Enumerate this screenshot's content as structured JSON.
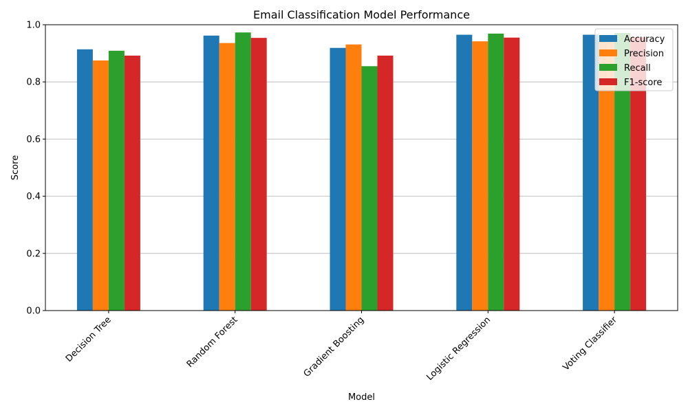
{
  "chart_data": {
    "type": "bar",
    "title": "Email Classification Model Performance",
    "xlabel": "Model",
    "ylabel": "Score",
    "ylim": [
      0,
      1
    ],
    "yticks": [
      "0.0",
      "0.2",
      "0.4",
      "0.6",
      "0.8",
      "1.0"
    ],
    "grid": "horizontal",
    "legend_position": "top-right",
    "categories": [
      "Decision Tree",
      "Random Forest",
      "Gradient Boosting",
      "Logistic Regression",
      "Voting Classifier"
    ],
    "series": [
      {
        "name": "Accuracy",
        "color": "#1f77b4",
        "values": [
          0.914,
          0.962,
          0.919,
          0.965,
          0.965
        ]
      },
      {
        "name": "Precision",
        "color": "#ff7f0e",
        "values": [
          0.875,
          0.936,
          0.931,
          0.942,
          0.942
        ]
      },
      {
        "name": "Recall",
        "color": "#2ca02c",
        "values": [
          0.909,
          0.973,
          0.855,
          0.969,
          0.971
        ]
      },
      {
        "name": "F1-score",
        "color": "#d62728",
        "values": [
          0.892,
          0.954,
          0.892,
          0.955,
          0.956
        ]
      }
    ]
  }
}
